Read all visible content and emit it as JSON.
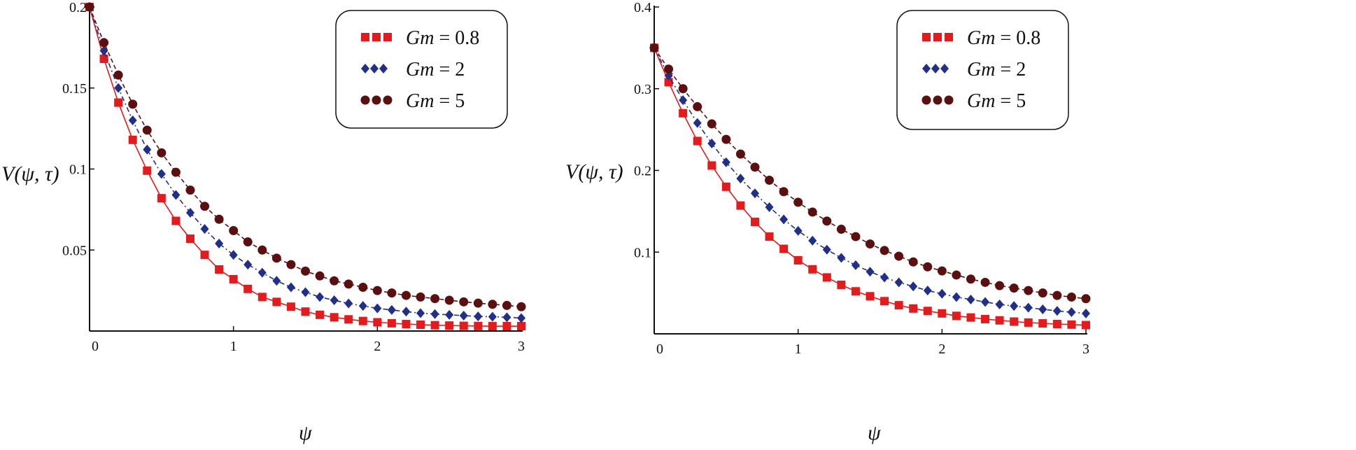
{
  "chart_data": [
    {
      "type": "line",
      "title": "",
      "xlabel": "ψ",
      "ylabel": "V(ψ, τ)",
      "xlim": [
        0,
        3
      ],
      "ylim": [
        0,
        0.2
      ],
      "x_ticks": [
        "0",
        "1",
        "2",
        "3"
      ],
      "y_ticks": [
        "0.05",
        "0.1",
        "0.15",
        "0.2"
      ],
      "x": [
        0,
        0.1,
        0.2,
        0.3,
        0.4,
        0.5,
        0.6,
        0.7,
        0.8,
        0.9,
        1.0,
        1.1,
        1.2,
        1.3,
        1.4,
        1.5,
        1.6,
        1.7,
        1.8,
        1.9,
        2.0,
        2.1,
        2.2,
        2.3,
        2.4,
        2.5,
        2.6,
        2.7,
        2.8,
        2.9,
        3.0
      ],
      "legend_position": "top-right",
      "series": [
        {
          "name": "Gm = 0.8",
          "legend_label": "Gm",
          "legend_value": "= 0.8",
          "color": "#e41a1c",
          "marker": "square",
          "line": "solid",
          "values": [
            0.2,
            0.168,
            0.141,
            0.118,
            0.099,
            0.082,
            0.068,
            0.057,
            0.047,
            0.038,
            0.032,
            0.026,
            0.021,
            0.018,
            0.015,
            0.012,
            0.01,
            0.0085,
            0.0072,
            0.0062,
            0.0054,
            0.0048,
            0.0043,
            0.0039,
            0.0036,
            0.0034,
            0.0032,
            0.0031,
            0.003,
            0.003,
            0.003
          ]
        },
        {
          "name": "Gm = 2",
          "legend_label": "Gm",
          "legend_value": "= 2",
          "color": "#1f2f8a",
          "marker": "diamond",
          "line": "dashdot",
          "values": [
            0.2,
            0.173,
            0.15,
            0.13,
            0.112,
            0.097,
            0.084,
            0.073,
            0.063,
            0.054,
            0.047,
            0.041,
            0.036,
            0.031,
            0.027,
            0.024,
            0.021,
            0.019,
            0.017,
            0.0155,
            0.014,
            0.013,
            0.012,
            0.011,
            0.0105,
            0.01,
            0.0095,
            0.009,
            0.0088,
            0.0085,
            0.008
          ]
        },
        {
          "name": "Gm = 5",
          "legend_label": "Gm",
          "legend_value": "= 5",
          "color": "#5c0f0f",
          "marker": "circle",
          "line": "dashed",
          "values": [
            0.2,
            0.178,
            0.158,
            0.14,
            0.124,
            0.11,
            0.098,
            0.087,
            0.077,
            0.069,
            0.062,
            0.055,
            0.05,
            0.045,
            0.041,
            0.037,
            0.034,
            0.031,
            0.029,
            0.027,
            0.025,
            0.0235,
            0.022,
            0.021,
            0.02,
            0.019,
            0.018,
            0.0172,
            0.0165,
            0.0158,
            0.015
          ]
        }
      ]
    },
    {
      "type": "line",
      "title": "",
      "xlabel": "ψ",
      "ylabel": "V(ψ, τ)",
      "xlim": [
        0,
        3
      ],
      "ylim": [
        0,
        0.4
      ],
      "x_ticks": [
        "0",
        "1",
        "2",
        "3"
      ],
      "y_ticks": [
        "0.1",
        "0.2",
        "0.3",
        "0.4"
      ],
      "x": [
        0,
        0.1,
        0.2,
        0.3,
        0.4,
        0.5,
        0.6,
        0.7,
        0.8,
        0.9,
        1.0,
        1.1,
        1.2,
        1.3,
        1.4,
        1.5,
        1.6,
        1.7,
        1.8,
        1.9,
        2.0,
        2.1,
        2.2,
        2.3,
        2.4,
        2.5,
        2.6,
        2.7,
        2.8,
        2.9,
        3.0
      ],
      "legend_position": "top-right",
      "series": [
        {
          "name": "Gm = 0.8",
          "legend_label": "Gm",
          "legend_value": "= 0.8",
          "color": "#e41a1c",
          "marker": "square",
          "line": "solid",
          "values": [
            0.35,
            0.308,
            0.27,
            0.236,
            0.206,
            0.18,
            0.157,
            0.137,
            0.119,
            0.104,
            0.09,
            0.079,
            0.069,
            0.06,
            0.052,
            0.046,
            0.04,
            0.035,
            0.031,
            0.028,
            0.025,
            0.022,
            0.02,
            0.018,
            0.0165,
            0.015,
            0.0138,
            0.0128,
            0.012,
            0.0113,
            0.0107
          ]
        },
        {
          "name": "Gm = 2",
          "legend_label": "Gm",
          "legend_value": "= 2",
          "color": "#1f2f8a",
          "marker": "diamond",
          "line": "dashdot",
          "values": [
            0.35,
            0.316,
            0.286,
            0.258,
            0.233,
            0.21,
            0.19,
            0.172,
            0.155,
            0.14,
            0.126,
            0.114,
            0.103,
            0.093,
            0.084,
            0.076,
            0.069,
            0.063,
            0.058,
            0.053,
            0.049,
            0.045,
            0.042,
            0.039,
            0.036,
            0.034,
            0.032,
            0.03,
            0.028,
            0.0265,
            0.025
          ]
        },
        {
          "name": "Gm = 5",
          "legend_label": "Gm",
          "legend_value": "= 5",
          "color": "#5c0f0f",
          "marker": "circle",
          "line": "dashed",
          "values": [
            0.35,
            0.324,
            0.3,
            0.278,
            0.257,
            0.238,
            0.22,
            0.204,
            0.188,
            0.174,
            0.161,
            0.149,
            0.138,
            0.128,
            0.119,
            0.11,
            0.102,
            0.095,
            0.088,
            0.082,
            0.077,
            0.072,
            0.067,
            0.063,
            0.059,
            0.056,
            0.053,
            0.05,
            0.047,
            0.045,
            0.043
          ]
        }
      ]
    }
  ]
}
